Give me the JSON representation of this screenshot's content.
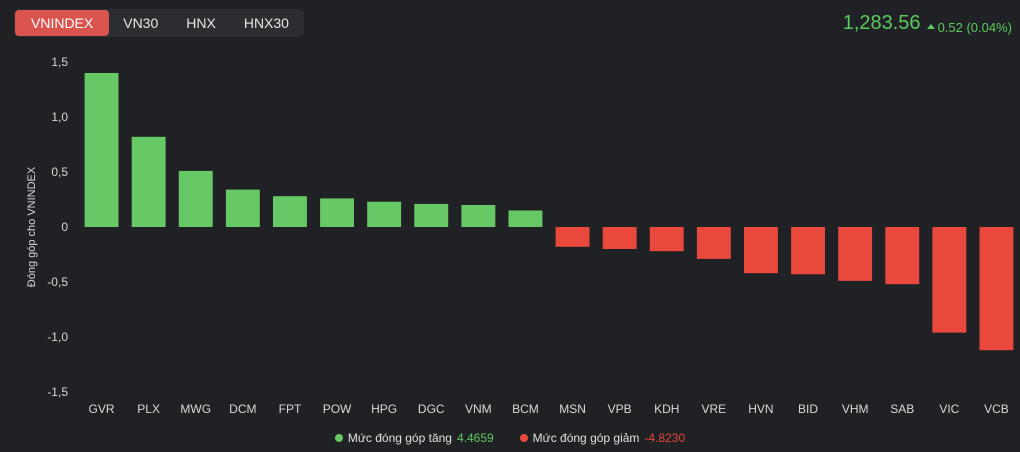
{
  "tabs": [
    {
      "label": "VNINDEX",
      "active": true
    },
    {
      "label": "VN30",
      "active": false
    },
    {
      "label": "HNX",
      "active": false
    },
    {
      "label": "HNX30",
      "active": false
    }
  ],
  "index": {
    "price": "1,283.56",
    "change": "0.52 (0.04%)",
    "trend_icon": "triangle-up-icon",
    "color": "#5cc95f"
  },
  "colors": {
    "positive": "#66c966",
    "negative": "#e9483c"
  },
  "legend": {
    "positive_label": "Mức đóng góp tăng",
    "positive_value": "4.4659",
    "negative_label": "Mức đóng góp giảm",
    "negative_value": "-4.8230"
  },
  "chart_data": {
    "type": "bar",
    "ylabel": "Đóng góp cho VNINDEX",
    "ylim": [
      -1.5,
      1.5
    ],
    "yticks": [
      1.5,
      1.0,
      0.5,
      0,
      -0.5,
      -1.0,
      -1.5
    ],
    "ytick_labels": [
      "1,5",
      "1,0",
      "0,5",
      "0",
      "-0,5",
      "-1,0",
      "-1,5"
    ],
    "categories": [
      "GVR",
      "PLX",
      "MWG",
      "DCM",
      "FPT",
      "POW",
      "HPG",
      "DGC",
      "VNM",
      "BCM",
      "MSN",
      "VPB",
      "KDH",
      "VRE",
      "HVN",
      "BID",
      "VHM",
      "SAB",
      "VIC",
      "VCB"
    ],
    "values": [
      1.4,
      0.82,
      0.51,
      0.34,
      0.28,
      0.26,
      0.23,
      0.21,
      0.2,
      0.15,
      -0.18,
      -0.2,
      -0.22,
      -0.29,
      -0.42,
      -0.43,
      -0.49,
      -0.52,
      -0.96,
      -1.12
    ]
  }
}
